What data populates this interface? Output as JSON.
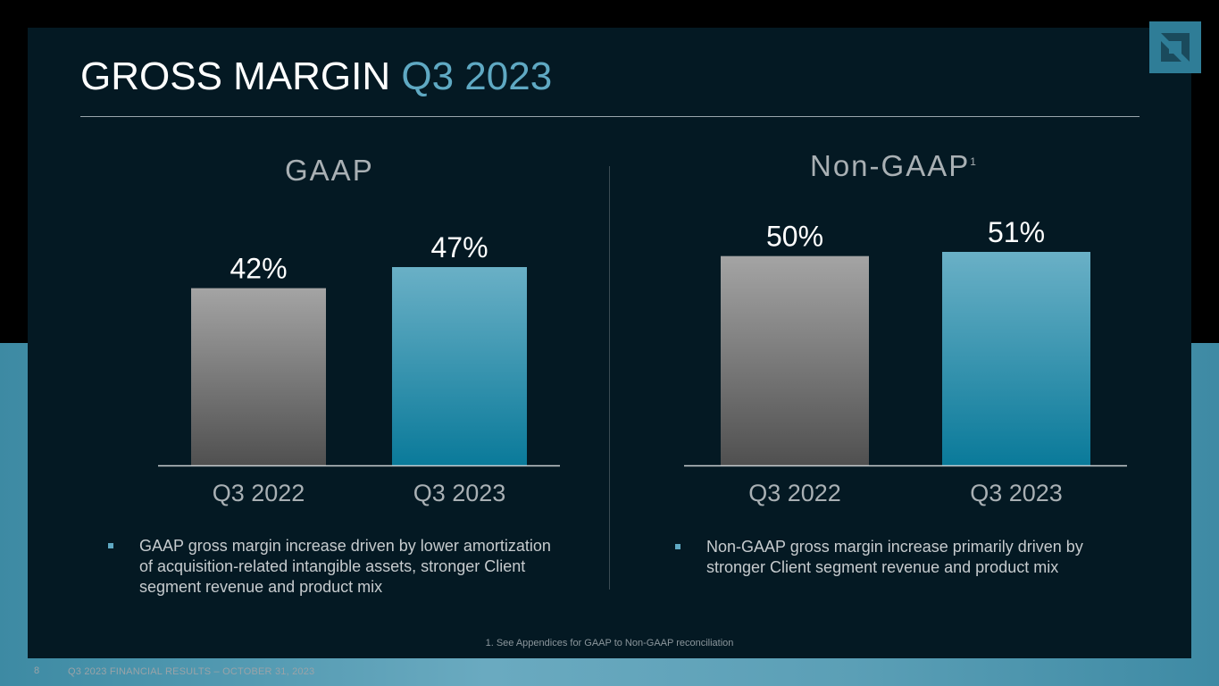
{
  "slide": {
    "title_main": "GROSS MARGIN",
    "title_accent": "Q3 2023",
    "page_number": "8",
    "footer": "Q3 2023 FINANCIAL RESULTS – OCTOBER 31, 2023",
    "footnote": "1. See Appendices for GAAP to Non-GAAP reconciliation"
  },
  "sections": {
    "gaap": {
      "title": "GAAP",
      "bullet": "GAAP gross margin increase driven by lower amortization of acquisition-related intangible assets, stronger Client segment revenue and product mix"
    },
    "non_gaap": {
      "title": "Non-GAAP",
      "title_sup": "1",
      "bullet": "Non-GAAP gross margin increase primarily driven by stronger Client segment revenue and product mix"
    }
  },
  "colors": {
    "prior_bar_top": "#a4a4a4",
    "prior_bar_bottom": "#505050",
    "current_bar_top": "#6ab0c6",
    "current_bar_bottom": "#0a7a9a",
    "accent": "#5fa9c3"
  },
  "chart_data": [
    {
      "type": "bar",
      "title": "GAAP",
      "categories": [
        "Q3 2022",
        "Q3 2023"
      ],
      "values": [
        42,
        47
      ],
      "value_labels": [
        "42%",
        "47%"
      ],
      "xlabel": "",
      "ylabel": "",
      "ylim": [
        0,
        47
      ]
    },
    {
      "type": "bar",
      "title": "Non-GAAP",
      "categories": [
        "Q3 2022",
        "Q3 2023"
      ],
      "values": [
        50,
        51
      ],
      "value_labels": [
        "50%",
        "51%"
      ],
      "xlabel": "",
      "ylabel": "",
      "ylim": [
        0,
        51
      ]
    }
  ]
}
